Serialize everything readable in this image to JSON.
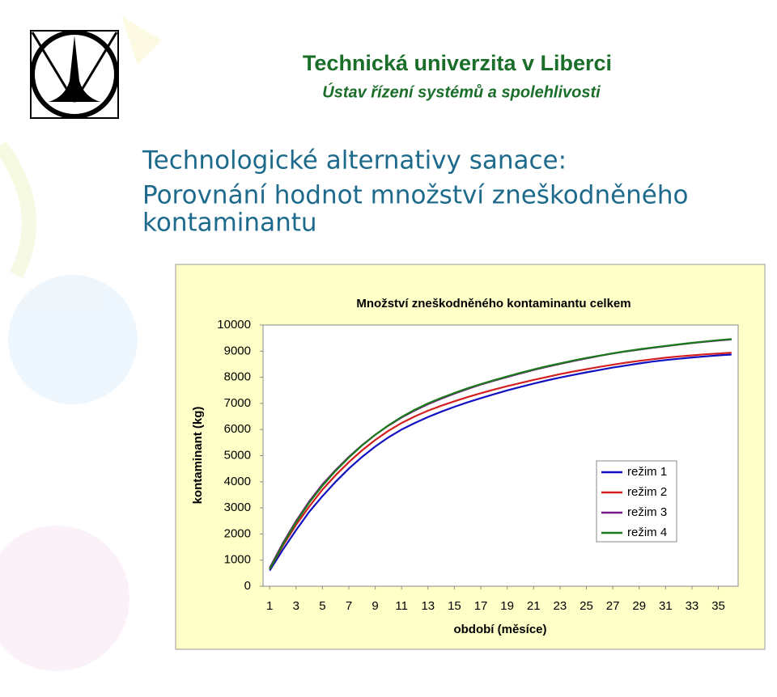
{
  "header": {
    "title": "Technická univerzita v Liberci",
    "subtitle": "Ústav řízení systémů a spolehlivosti"
  },
  "heading": {
    "lines": [
      "Technologické alternativy sanace:",
      "Porovnání hodnot množství zneškodněného",
      "kontaminantu"
    ]
  },
  "chart_data": {
    "type": "line",
    "title": "Množství zneškodněného kontaminantu celkem",
    "xlabel": "období (měsíce)",
    "ylabel": "kontaminant (kg)",
    "x": [
      1,
      2,
      3,
      4,
      5,
      6,
      7,
      8,
      9,
      10,
      11,
      12,
      13,
      14,
      15,
      16,
      17,
      18,
      19,
      20,
      21,
      22,
      23,
      24,
      25,
      26,
      27,
      28,
      29,
      30,
      31,
      32,
      33,
      34,
      35,
      36
    ],
    "xlim": [
      0.5,
      36.5
    ],
    "xticks": [
      1,
      3,
      5,
      7,
      9,
      11,
      13,
      15,
      17,
      19,
      21,
      23,
      25,
      27,
      29,
      31,
      33,
      35
    ],
    "ylim": [
      0,
      10000
    ],
    "yticks": [
      0,
      1000,
      2000,
      3000,
      4000,
      5000,
      6000,
      7000,
      8000,
      9000,
      10000
    ],
    "legend": "right",
    "series": [
      {
        "name": "režim 1",
        "color": "#1010c0",
        "values": [
          600,
          1400,
          2150,
          2850,
          3450,
          4000,
          4500,
          4950,
          5350,
          5700,
          6000,
          6250,
          6480,
          6680,
          6870,
          7040,
          7200,
          7350,
          7500,
          7630,
          7760,
          7880,
          7990,
          8090,
          8190,
          8280,
          8370,
          8450,
          8530,
          8600,
          8660,
          8710,
          8760,
          8800,
          8840,
          8870
        ]
      },
      {
        "name": "režim 2",
        "color": "#d42020",
        "values": [
          650,
          1550,
          2350,
          3050,
          3700,
          4250,
          4750,
          5200,
          5600,
          5950,
          6250,
          6500,
          6720,
          6910,
          7080,
          7240,
          7390,
          7530,
          7660,
          7780,
          7900,
          8010,
          8120,
          8220,
          8310,
          8400,
          8480,
          8560,
          8630,
          8690,
          8750,
          8800,
          8840,
          8880,
          8910,
          8940
        ]
      },
      {
        "name": "režim 3",
        "color": "#7a1a8a",
        "values": [
          700,
          1650,
          2500,
          3250,
          3900,
          4450,
          4950,
          5400,
          5800,
          6150,
          6460,
          6730,
          6970,
          7180,
          7370,
          7550,
          7720,
          7870,
          8010,
          8150,
          8280,
          8400,
          8510,
          8620,
          8720,
          8820,
          8910,
          8990,
          9060,
          9130,
          9190,
          9250,
          9310,
          9360,
          9410,
          9450
        ]
      },
      {
        "name": "režim 4",
        "color": "#1a7a1a",
        "values": [
          650,
          1600,
          2450,
          3200,
          3850,
          4420,
          4930,
          5390,
          5800,
          6160,
          6480,
          6760,
          7000,
          7210,
          7400,
          7580,
          7740,
          7890,
          8030,
          8170,
          8300,
          8420,
          8530,
          8640,
          8740,
          8830,
          8920,
          9000,
          9070,
          9140,
          9200,
          9260,
          9320,
          9370,
          9420,
          9460
        ]
      }
    ]
  }
}
